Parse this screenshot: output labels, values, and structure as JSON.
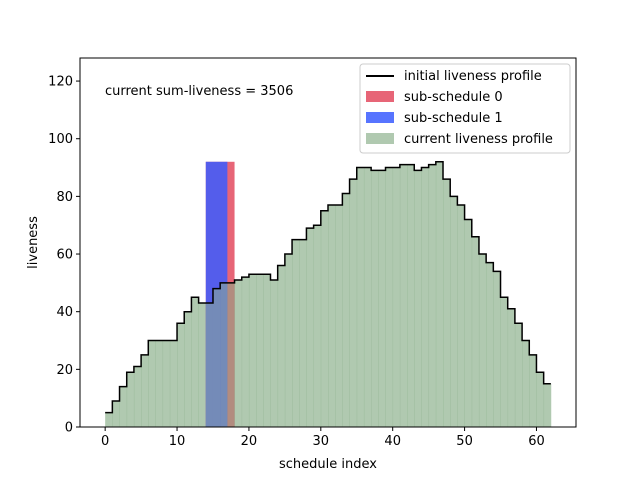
{
  "chart_data": {
    "type": "area",
    "xlabel": "schedule index",
    "ylabel": "liveness",
    "xlim": [
      -3.5,
      65.5
    ],
    "ylim": [
      0,
      128
    ],
    "x_ticks": [
      0,
      10,
      20,
      30,
      40,
      50,
      60
    ],
    "y_ticks": [
      0,
      20,
      40,
      60,
      80,
      100,
      120
    ],
    "grid": false,
    "legend_position": "top-right",
    "annotation": "current sum-liveness = 3506",
    "series": [
      {
        "name": "initial liveness profile",
        "kind": "step-line",
        "color": "#000000",
        "x_start": 0,
        "values": [
          5,
          9,
          14,
          19,
          21,
          25,
          30,
          30,
          30,
          30,
          36,
          40,
          45,
          43,
          43,
          48,
          50,
          50,
          51,
          52,
          53,
          53,
          53,
          51,
          56,
          60,
          65,
          65,
          69,
          70,
          75,
          77,
          77,
          81,
          86,
          90,
          90,
          89,
          89,
          90,
          90,
          91,
          91,
          89,
          90,
          91,
          92,
          86,
          80,
          77,
          72,
          66,
          60,
          57,
          54,
          45,
          41,
          36,
          30,
          25,
          19,
          15
        ]
      },
      {
        "name": "sub-schedule 0",
        "kind": "bar",
        "color": "#e34a5f",
        "x_start": 14,
        "x_end": 18,
        "value": 92
      },
      {
        "name": "sub-schedule 1",
        "kind": "bar",
        "color": "#3a5cff",
        "x_start": 14,
        "x_end": 17,
        "value": 92
      },
      {
        "name": "current liveness profile",
        "kind": "step-area",
        "color": "#8fb28f",
        "x_start": 0,
        "values": [
          5,
          9,
          14,
          19,
          21,
          25,
          30,
          30,
          30,
          30,
          36,
          40,
          45,
          43,
          43,
          48,
          50,
          50,
          51,
          52,
          53,
          53,
          53,
          51,
          56,
          60,
          65,
          65,
          69,
          70,
          75,
          77,
          77,
          81,
          86,
          90,
          90,
          89,
          89,
          90,
          90,
          91,
          91,
          89,
          90,
          91,
          92,
          86,
          80,
          77,
          72,
          66,
          60,
          57,
          54,
          45,
          41,
          36,
          30,
          25,
          19,
          15
        ]
      }
    ]
  }
}
